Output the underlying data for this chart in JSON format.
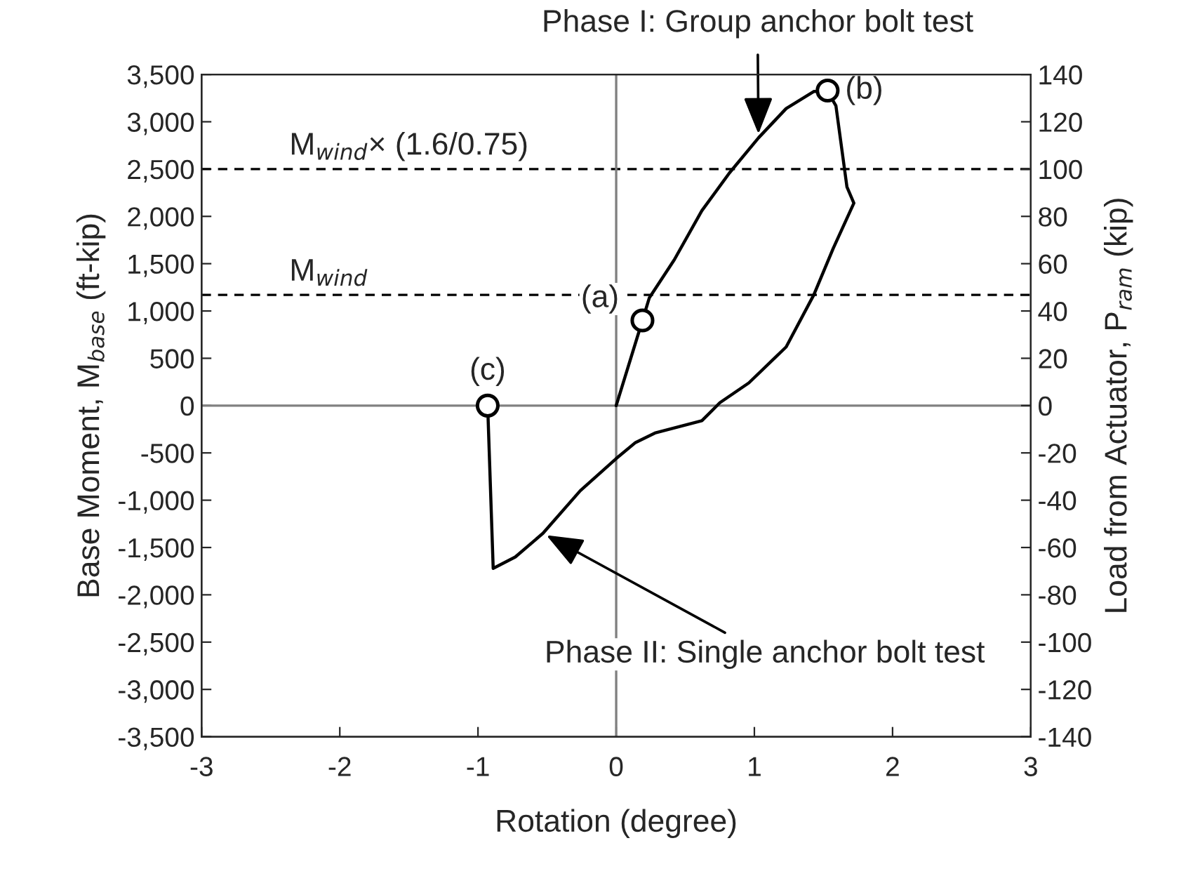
{
  "chart_data": {
    "type": "line",
    "xlabel": "Rotation (degree)",
    "ylabel": "Base Moment, M$_{base}$ (ft-kip)",
    "y2label": "Load from Actuator, P$_{ram}$ (kip)",
    "series": [
      {
        "type": "line",
        "color": "#000000",
        "x": [
          0,
          0.19,
          0.24,
          0.42,
          0.62,
          0.82,
          1.03,
          1.23,
          1.43,
          1.53,
          1.59,
          1.67,
          1.72,
          1.57,
          1.43,
          1.23,
          0.96,
          0.75,
          0.62,
          0.28,
          0.14,
          0.0,
          -0.26,
          -0.53,
          -0.73,
          -0.89,
          -0.93
        ],
        "values": [
          0,
          900,
          1140,
          1540,
          2060,
          2460,
          2830,
          3140,
          3320,
          3320,
          3170,
          2310,
          2140,
          1660,
          1170,
          620,
          240,
          30,
          -160,
          -290,
          -390,
          -560,
          -900,
          -1350,
          -1600,
          -1720,
          0
        ]
      },
      {
        "type": "scatter",
        "color": "#000000",
        "marker": "circle",
        "x": [
          0.19,
          1.53,
          -0.93
        ],
        "values": [
          900,
          3330,
          0
        ]
      }
    ],
    "xlim": [
      -3,
      3
    ],
    "xticks": [
      -3,
      -2,
      -1,
      0,
      1,
      2,
      3
    ],
    "ylim": [
      -3500,
      3500
    ],
    "yticks": [
      {
        "value": -3500,
        "label": "-3,500"
      },
      {
        "value": -3000,
        "label": "-3,000"
      },
      {
        "value": -2500,
        "label": "-2,500"
      },
      {
        "value": -2000,
        "label": "-2,000"
      },
      {
        "value": -1500,
        "label": "-1,500"
      },
      {
        "value": -1000,
        "label": "-1,000"
      },
      -500,
      0,
      500,
      {
        "value": 1000,
        "label": "1,000"
      },
      {
        "value": 1500,
        "label": "1,500"
      },
      {
        "value": 2000,
        "label": "2,000"
      },
      {
        "value": 2500,
        "label": "2,500"
      },
      {
        "value": 3000,
        "label": "3,000"
      },
      {
        "value": 3500,
        "label": "3,500"
      }
    ],
    "y2lim": [
      -140,
      140
    ],
    "y2ticks": [
      -140,
      -120,
      -100,
      -80,
      -60,
      -40,
      -20,
      0,
      20,
      40,
      60,
      80,
      100,
      120,
      140
    ],
    "ref_lines": [
      {
        "axis": "y",
        "value": 1170,
        "label": "M$_{wind}$",
        "line_style": "dashed",
        "color": "#000000"
      },
      {
        "axis": "y",
        "value": 2500,
        "label": "M$_{wind}$× (1.6/0.75)",
        "line_style": "dashed",
        "color": "#000000"
      },
      {
        "axis": "x",
        "value": 0,
        "line_style": "solid",
        "color": "#808080"
      },
      {
        "axis": "y",
        "value": 0,
        "line_style": "solid",
        "color": "#808080"
      }
    ],
    "annotations": [
      {
        "text": "Phase I: Group anchor bolt test",
        "x": 1.03,
        "y": 2830
      },
      {
        "text": "Phase II: Single anchor bolt test",
        "x": -0.53,
        "y": -1350
      },
      {
        "text": "(a)",
        "x": 0.19,
        "y": 900
      },
      {
        "text": "(b)",
        "x": 1.53,
        "y": 3330
      },
      {
        "text": "(c)",
        "x": -0.93,
        "y": 0
      }
    ],
    "grid": false,
    "legend": false
  }
}
